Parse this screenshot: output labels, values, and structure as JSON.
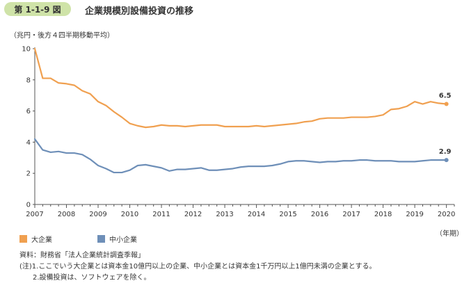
{
  "header": {
    "figure_number": "第 1-1-9 図",
    "title": "企業規模別設備投資の推移"
  },
  "unit_label": "（兆円・後方４四半期移動平均）",
  "year_unit_label": "（年期）",
  "colors": {
    "large": "#f0a050",
    "small": "#6e8fb8",
    "axis": "#555555",
    "badge": "#cfe3a8"
  },
  "chart_data": {
    "type": "line",
    "title": "企業規模別設備投資の推移",
    "ylabel": "（兆円・後方４四半期移動平均）",
    "xlabel": "（年期）",
    "ylim": [
      0,
      10
    ],
    "yticks": [
      "0",
      "2",
      "4",
      "6",
      "8",
      "10"
    ],
    "xlim": [
      2007.0,
      2020.25
    ],
    "x_tick_labels": [
      "2007",
      "2008",
      "2009",
      "2010",
      "2011",
      "2012",
      "2013",
      "2014",
      "2015",
      "2016",
      "2017",
      "2018",
      "2019",
      "2020"
    ],
    "grid": false,
    "legend_position": "bottom-left",
    "series": [
      {
        "name": "大企業",
        "color": "#f0a050",
        "end_label": "6.5",
        "points": [
          [
            2007.0,
            10.0
          ],
          [
            2007.25,
            8.1
          ],
          [
            2007.5,
            8.1
          ],
          [
            2007.75,
            7.8
          ],
          [
            2008.0,
            7.75
          ],
          [
            2008.25,
            7.65
          ],
          [
            2008.5,
            7.3
          ],
          [
            2008.75,
            7.1
          ],
          [
            2009.0,
            6.6
          ],
          [
            2009.25,
            6.35
          ],
          [
            2009.5,
            5.95
          ],
          [
            2009.75,
            5.6
          ],
          [
            2010.0,
            5.2
          ],
          [
            2010.25,
            5.05
          ],
          [
            2010.5,
            4.95
          ],
          [
            2010.75,
            5.0
          ],
          [
            2011.0,
            5.1
          ],
          [
            2011.25,
            5.05
          ],
          [
            2011.5,
            5.05
          ],
          [
            2011.75,
            5.0
          ],
          [
            2012.0,
            5.05
          ],
          [
            2012.25,
            5.1
          ],
          [
            2012.5,
            5.1
          ],
          [
            2012.75,
            5.1
          ],
          [
            2013.0,
            5.0
          ],
          [
            2013.25,
            5.0
          ],
          [
            2013.5,
            5.0
          ],
          [
            2013.75,
            5.0
          ],
          [
            2014.0,
            5.05
          ],
          [
            2014.25,
            5.0
          ],
          [
            2014.5,
            5.05
          ],
          [
            2014.75,
            5.1
          ],
          [
            2015.0,
            5.15
          ],
          [
            2015.25,
            5.2
          ],
          [
            2015.5,
            5.3
          ],
          [
            2015.75,
            5.35
          ],
          [
            2016.0,
            5.5
          ],
          [
            2016.25,
            5.55
          ],
          [
            2016.5,
            5.55
          ],
          [
            2016.75,
            5.55
          ],
          [
            2017.0,
            5.6
          ],
          [
            2017.25,
            5.6
          ],
          [
            2017.5,
            5.6
          ],
          [
            2017.75,
            5.65
          ],
          [
            2018.0,
            5.75
          ],
          [
            2018.25,
            6.1
          ],
          [
            2018.5,
            6.15
          ],
          [
            2018.75,
            6.3
          ],
          [
            2019.0,
            6.6
          ],
          [
            2019.25,
            6.45
          ],
          [
            2019.5,
            6.6
          ],
          [
            2019.75,
            6.5
          ],
          [
            2020.0,
            6.45
          ]
        ]
      },
      {
        "name": "中小企業",
        "color": "#6e8fb8",
        "end_label": "2.9",
        "points": [
          [
            2007.0,
            4.2
          ],
          [
            2007.25,
            3.5
          ],
          [
            2007.5,
            3.35
          ],
          [
            2007.75,
            3.4
          ],
          [
            2008.0,
            3.3
          ],
          [
            2008.25,
            3.3
          ],
          [
            2008.5,
            3.2
          ],
          [
            2008.75,
            2.9
          ],
          [
            2009.0,
            2.5
          ],
          [
            2009.25,
            2.3
          ],
          [
            2009.5,
            2.05
          ],
          [
            2009.75,
            2.05
          ],
          [
            2010.0,
            2.2
          ],
          [
            2010.25,
            2.5
          ],
          [
            2010.5,
            2.55
          ],
          [
            2010.75,
            2.45
          ],
          [
            2011.0,
            2.35
          ],
          [
            2011.25,
            2.15
          ],
          [
            2011.5,
            2.25
          ],
          [
            2011.75,
            2.25
          ],
          [
            2012.0,
            2.3
          ],
          [
            2012.25,
            2.35
          ],
          [
            2012.5,
            2.2
          ],
          [
            2012.75,
            2.2
          ],
          [
            2013.0,
            2.25
          ],
          [
            2013.25,
            2.3
          ],
          [
            2013.5,
            2.4
          ],
          [
            2013.75,
            2.45
          ],
          [
            2014.0,
            2.45
          ],
          [
            2014.25,
            2.45
          ],
          [
            2014.5,
            2.5
          ],
          [
            2014.75,
            2.6
          ],
          [
            2015.0,
            2.75
          ],
          [
            2015.25,
            2.8
          ],
          [
            2015.5,
            2.8
          ],
          [
            2015.75,
            2.75
          ],
          [
            2016.0,
            2.7
          ],
          [
            2016.25,
            2.75
          ],
          [
            2016.5,
            2.75
          ],
          [
            2016.75,
            2.8
          ],
          [
            2017.0,
            2.8
          ],
          [
            2017.25,
            2.85
          ],
          [
            2017.5,
            2.85
          ],
          [
            2017.75,
            2.8
          ],
          [
            2018.0,
            2.8
          ],
          [
            2018.25,
            2.8
          ],
          [
            2018.5,
            2.75
          ],
          [
            2018.75,
            2.75
          ],
          [
            2019.0,
            2.75
          ],
          [
            2019.25,
            2.8
          ],
          [
            2019.5,
            2.85
          ],
          [
            2019.75,
            2.85
          ],
          [
            2020.0,
            2.85
          ]
        ]
      }
    ]
  },
  "legend": [
    {
      "label": "大企業",
      "color": "#f0a050"
    },
    {
      "label": "中小企業",
      "color": "#6e8fb8"
    }
  ],
  "notes": {
    "source": "資料：財務省「法人企業統計調査季報」",
    "note1": "(注)1.ここでいう大企業とは資本金10億円以上の企業、中小企業とは資本金1千万円以上1億円未満の企業とする。",
    "note2": "2.設備投資は、ソフトウェアを除く。"
  }
}
